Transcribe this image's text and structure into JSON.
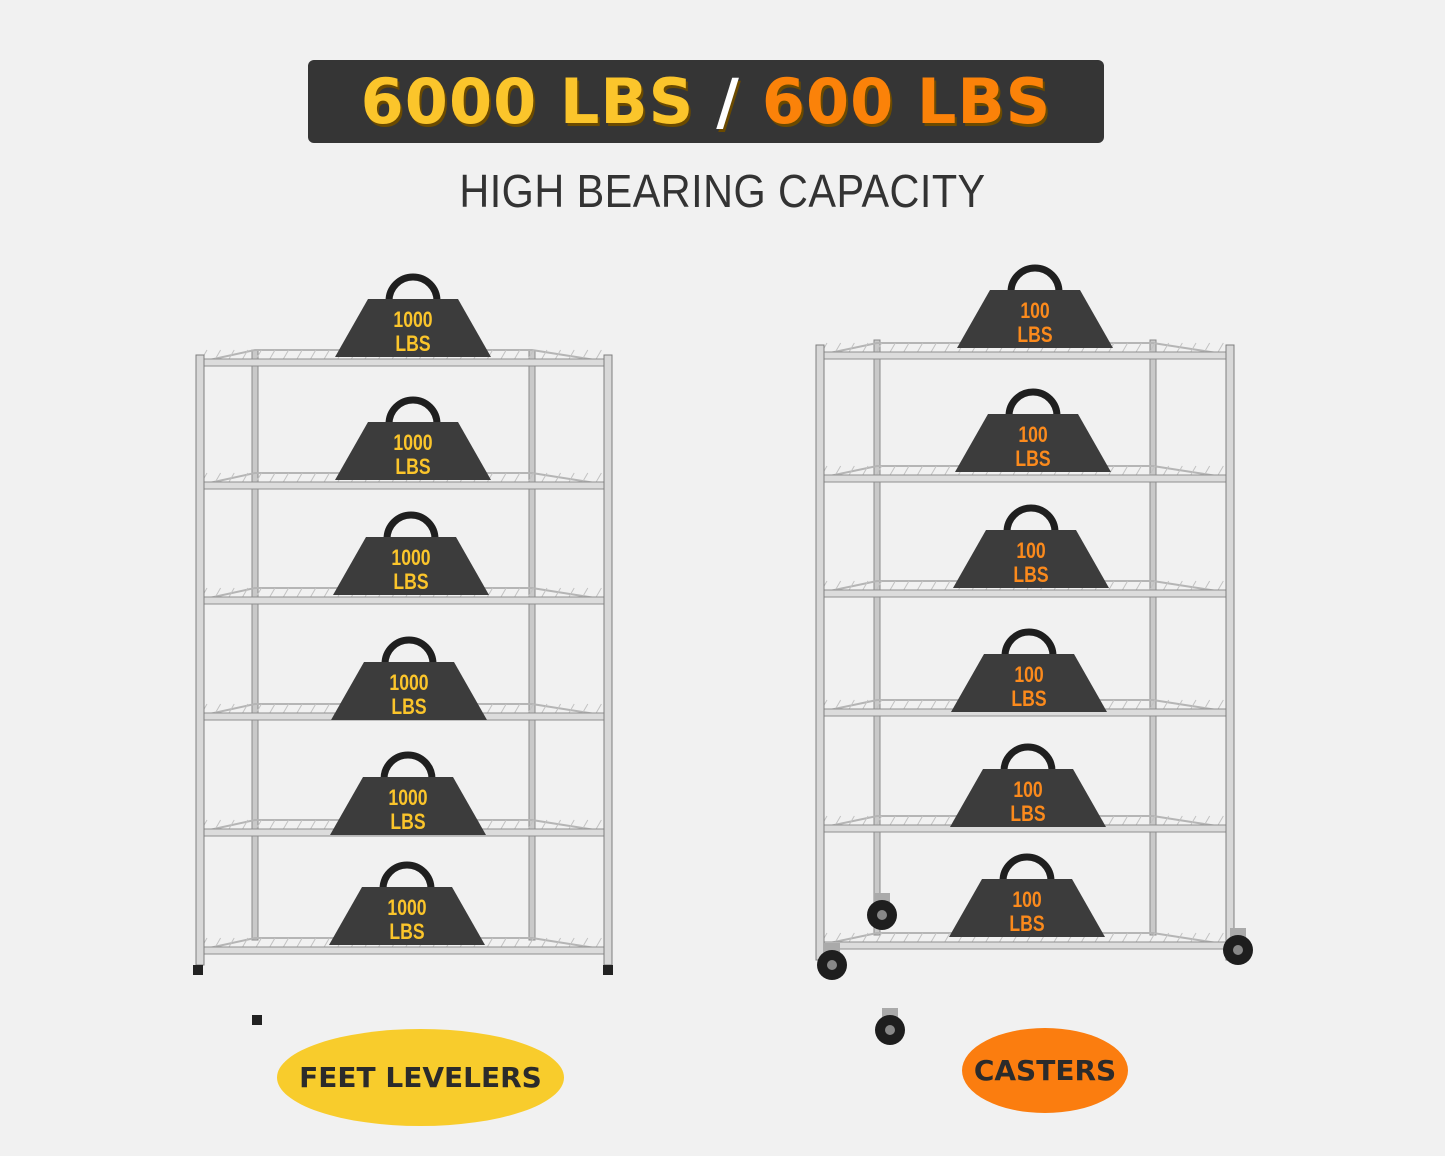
{
  "header": {
    "capacity_left": "6000 LBS",
    "separator": "/",
    "capacity_right": "600 LBS",
    "subtitle": "HIGH BEARING CAPACITY"
  },
  "left_rack": {
    "weights": [
      {
        "value": "1000",
        "unit": "LBS"
      },
      {
        "value": "1000",
        "unit": "LBS"
      },
      {
        "value": "1000",
        "unit": "LBS"
      },
      {
        "value": "1000",
        "unit": "LBS"
      },
      {
        "value": "1000",
        "unit": "LBS"
      },
      {
        "value": "1000",
        "unit": "LBS"
      }
    ],
    "label": "FEET LEVELERS",
    "label_color": "#f8cc2c",
    "weight_text_color": "#fbc52b"
  },
  "right_rack": {
    "weights": [
      {
        "value": "100",
        "unit": "LBS"
      },
      {
        "value": "100",
        "unit": "LBS"
      },
      {
        "value": "100",
        "unit": "LBS"
      },
      {
        "value": "100",
        "unit": "LBS"
      },
      {
        "value": "100",
        "unit": "LBS"
      },
      {
        "value": "100",
        "unit": "LBS"
      }
    ],
    "label": "CASTERS",
    "label_color": "#fb7d0f",
    "weight_text_color": "#fb8a1c"
  },
  "colors": {
    "banner_bg": "#353535",
    "yellow": "#fbc52b",
    "orange": "#fb8209",
    "weight_body": "#3c3c3c"
  }
}
